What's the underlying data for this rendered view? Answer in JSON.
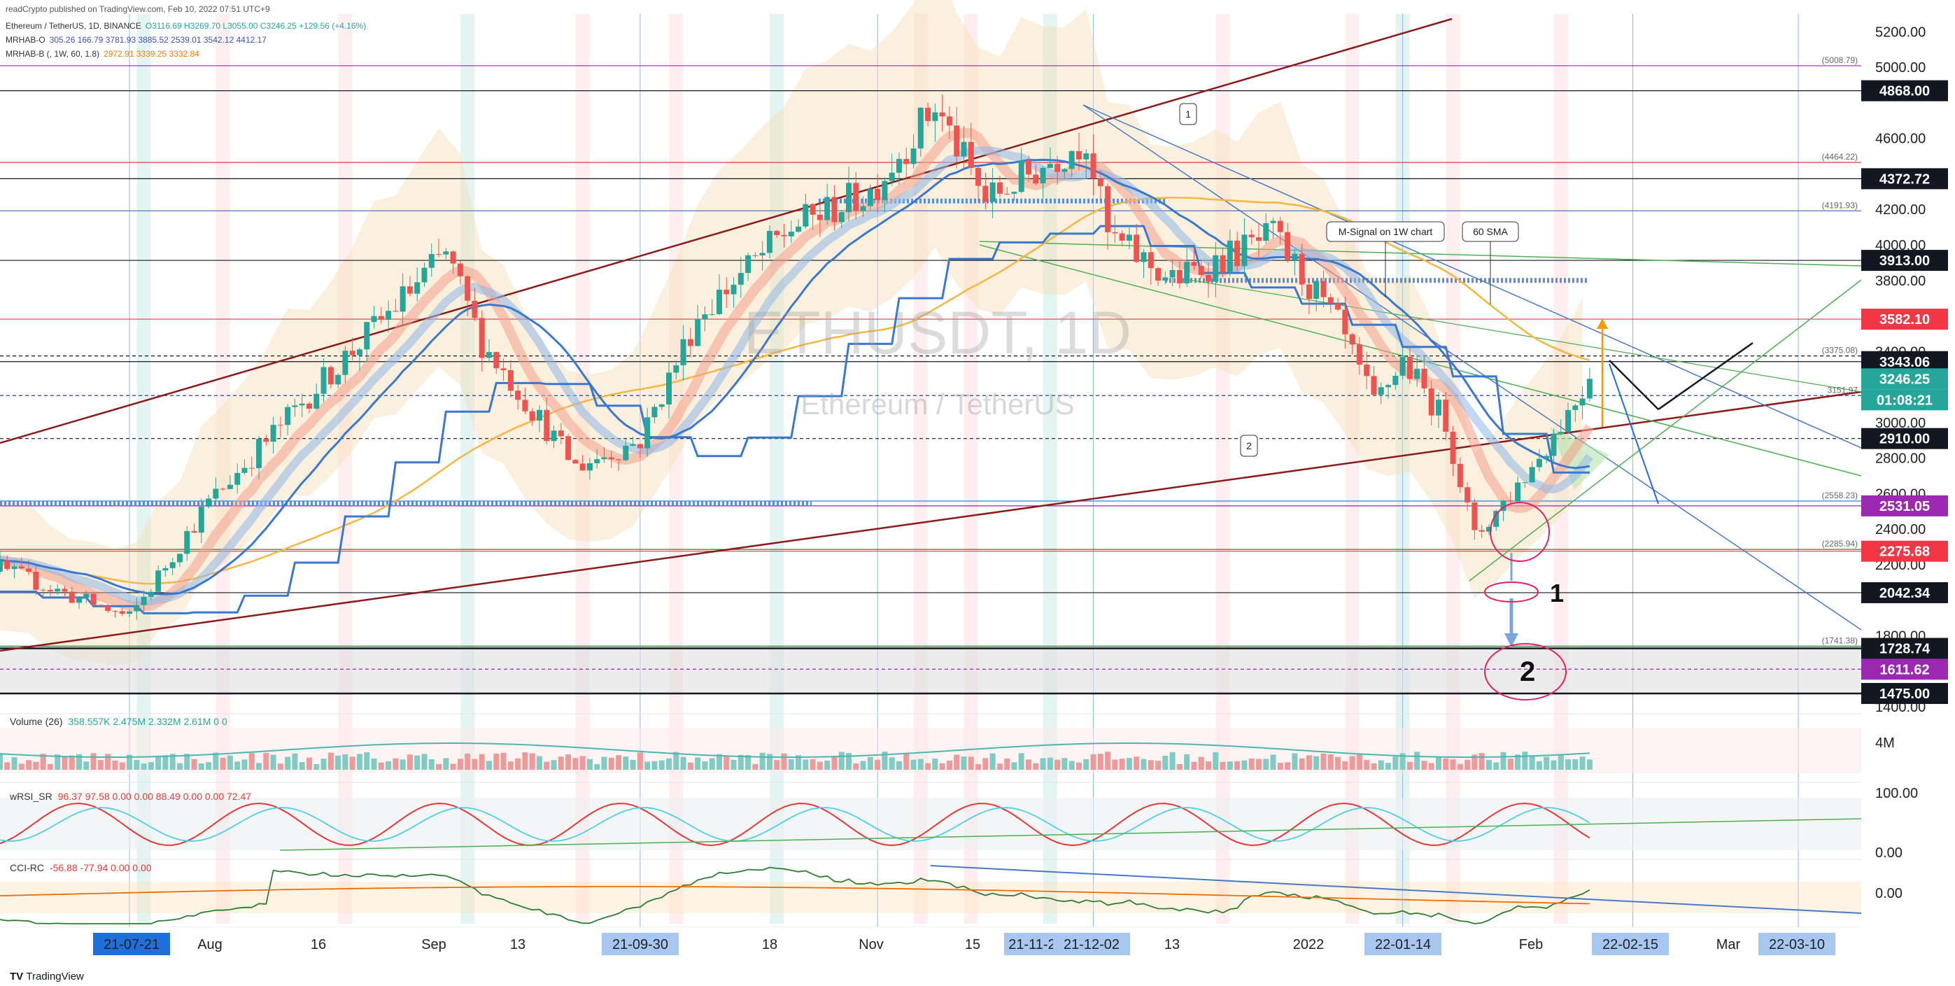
{
  "header": {
    "published": "readCrypto published on TradingView.com, Feb 10, 2022 07:51 UTC+9",
    "symbol_line": "Ethereum / TetherUS, 1D, BINANCE",
    "ohlc": "O3116.69 H3269.70 L3055.00 C3246.25 +129.56 (+4.16%)",
    "ind1_name": "MRHAB-O",
    "ind1_vals": "305.26 166.79 3781.93 3885.52 2539.01 3542.12 4412.17",
    "ind2_name": "MRHAB-B (, 1W, 60, 1.8)",
    "ind2_vals": "2972.91 3339.25 3332.84"
  },
  "watermark": {
    "symbol": "ETHUSDT, 1D",
    "name": "Ethereum / TetherUS"
  },
  "colors": {
    "up": "#26a69a",
    "down": "#ef5350",
    "trend": "#8b1a1a",
    "black_tag": "#131722",
    "red_tag": "#f23645",
    "purple_tag": "#9c27b0",
    "teal_tag": "#26a69a",
    "axis_blue": "#a8c7f0",
    "axis_blue_dark": "#1e6fd9"
  },
  "price_axis": {
    "ticks": [
      "5200.00",
      "5000.00",
      "4600.00",
      "4200.00",
      "4000.00",
      "3800.00",
      "3400.00",
      "3000.00",
      "2800.00",
      "2600.00",
      "2400.00",
      "2200.00",
      "1800.00",
      "1400.00"
    ],
    "tags": [
      {
        "label": "4868.00",
        "style": "black"
      },
      {
        "label": "4372.72",
        "style": "black"
      },
      {
        "label": "3913.00",
        "style": "black"
      },
      {
        "label": "3582.10",
        "style": "red"
      },
      {
        "label": "3343.06",
        "style": "black"
      },
      {
        "label": "3246.25",
        "style": "teal"
      },
      {
        "label": "01:08:21",
        "style": "teal"
      },
      {
        "label": "2910.00",
        "style": "black"
      },
      {
        "label": "2531.05",
        "style": "purple"
      },
      {
        "label": "2275.68",
        "style": "red"
      },
      {
        "label": "2042.34",
        "style": "black"
      },
      {
        "label": "1728.74",
        "style": "black"
      },
      {
        "label": "1611.62",
        "style": "purple"
      },
      {
        "label": "1475.00",
        "style": "black"
      }
    ],
    "small_labels": [
      "(5008.79)",
      "(4464.22)",
      "(4191.93)",
      "(3375.08)",
      "3151.97",
      "(2558.23)",
      "(2285.94)",
      "(1741.38)"
    ]
  },
  "annotations": {
    "m_signal": "M-Signal on 1W chart",
    "sma": "60 SMA",
    "circle1": "1",
    "circle2": "2",
    "big1": "1",
    "big2": "2"
  },
  "volume": {
    "label": "Volume (26)",
    "vals": "358.557K 2.475M 2.332M 2.61M 0 0",
    "tick": "4M"
  },
  "rsi": {
    "label": "wRSI_SR",
    "vals": "96.37 97.58 0.00 0.00 88.49 0.00 0.00 72.47",
    "ticks": [
      "100.00",
      "0.00"
    ]
  },
  "cci": {
    "label": "CCI-RC",
    "vals": "-56.88 -77.94 0.00 0.00",
    "ticks": [
      "0.00"
    ]
  },
  "time_axis": {
    "labels": [
      "Aug",
      "16",
      "Sep",
      "13",
      "18",
      "Nov",
      "15",
      "13",
      "2022",
      "Feb",
      "Mar"
    ],
    "highlights": [
      "21-07-21",
      "21-09-30",
      "21-11-2",
      "21-12-02",
      "22-01-14",
      "22-02-15",
      "22-03-10"
    ]
  },
  "footer": {
    "brand": "TradingView"
  },
  "chart_data": {
    "type": "candlestick",
    "title": "ETHUSDT, 1D",
    "timeframe": "1D",
    "ylim": [
      1400,
      5300
    ],
    "x_range": [
      "2021-07-21",
      "2022-03-10"
    ],
    "last_close": 3246.25,
    "series": [
      {
        "name": "Ethereum / TetherUS",
        "anchors": [
          [
            "2021-07-21",
            1900
          ],
          [
            "2021-08-01",
            2550
          ],
          [
            "2021-08-16",
            3200
          ],
          [
            "2021-09-03",
            3950
          ],
          [
            "2021-09-08",
            3450
          ],
          [
            "2021-09-21",
            2750
          ],
          [
            "2021-09-30",
            2900
          ],
          [
            "2021-10-08",
            3600
          ],
          [
            "2021-10-21",
            4100
          ],
          [
            "2021-11-01",
            4300
          ],
          [
            "2021-11-10",
            4780
          ],
          [
            "2021-11-17",
            4250
          ],
          [
            "2021-12-01",
            4600
          ],
          [
            "2021-12-04",
            4050
          ],
          [
            "2021-12-13",
            3800
          ],
          [
            "2021-12-27",
            4050
          ],
          [
            "2022-01-05",
            3550
          ],
          [
            "2022-01-10",
            3100
          ],
          [
            "2022-01-14",
            3350
          ],
          [
            "2022-01-20",
            3000
          ],
          [
            "2022-01-24",
            2350
          ],
          [
            "2022-02-01",
            2750
          ],
          [
            "2022-02-09",
            3246.25
          ]
        ]
      }
    ],
    "horizontal_levels": [
      5008.79,
      4868,
      4464.22,
      4372.72,
      4191.93,
      3913,
      3582.1,
      3375.08,
      3343.06,
      3151.97,
      2910,
      2558.23,
      2531.05,
      2285.94,
      2275.68,
      2042.34,
      1741.38,
      1728.74,
      1611.62,
      1475
    ]
  }
}
